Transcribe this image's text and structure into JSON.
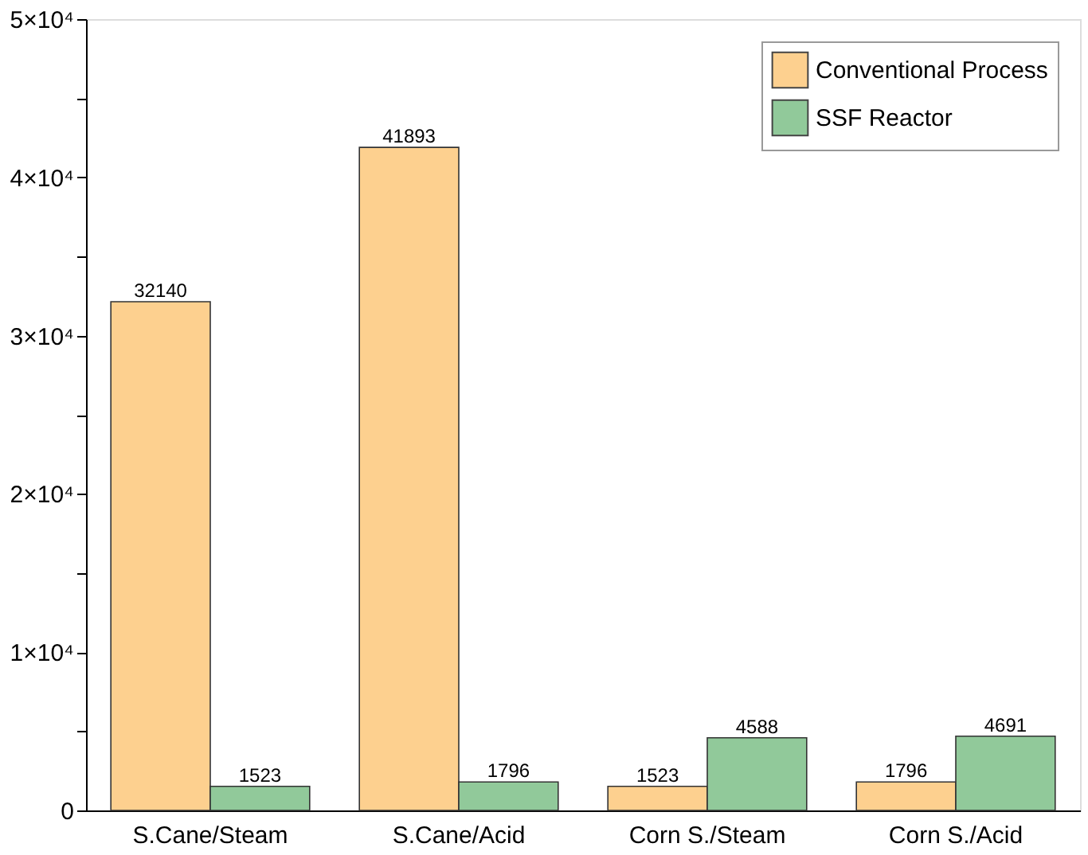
{
  "chart_data": {
    "type": "bar",
    "categories": [
      "S.Cane/Steam",
      "S.Cane/Acid",
      "Corn S./Steam",
      "Corn S./Acid"
    ],
    "series": [
      {
        "name": "Conventional Process",
        "color": "#fdd08f",
        "values": [
          32140,
          41893,
          1523,
          1796
        ]
      },
      {
        "name": "SSF Reactor",
        "color": "#91c99a",
        "values": [
          1523,
          1796,
          4588,
          4691
        ]
      }
    ],
    "ylim": [
      0,
      50000
    ],
    "yticks": [
      0,
      {
        "value": 5000,
        "label": null
      },
      {
        "value": 10000,
        "label": "1×10⁴"
      },
      {
        "value": 15000,
        "label": null
      },
      {
        "value": 20000,
        "label": "2×10⁴"
      },
      {
        "value": 25000,
        "label": null
      },
      {
        "value": 30000,
        "label": "3×10⁴"
      },
      {
        "value": 35000,
        "label": null
      },
      {
        "value": 40000,
        "label": "4×10⁴"
      },
      {
        "value": 45000,
        "label": null
      },
      {
        "value": 50000,
        "label": "5×10⁴"
      }
    ],
    "data_labels": true,
    "legend": "top right"
  }
}
